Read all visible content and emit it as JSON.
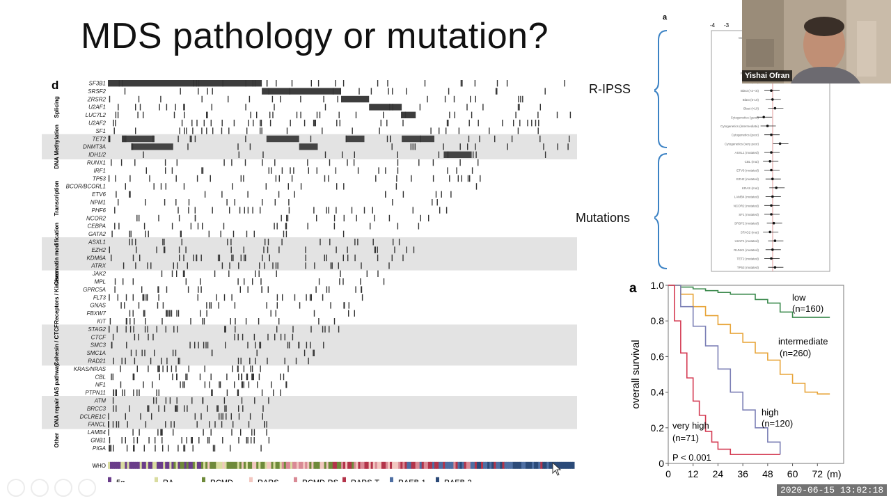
{
  "slide": {
    "title": "MDS pathology or mutation?",
    "ripss_label": "R-IPSS",
    "mutations_label": "Mutations"
  },
  "oncoprint": {
    "panel_letter": "d",
    "groups": [
      {
        "name": "Splicing",
        "shaded": false,
        "genes": [
          "SF3B1",
          "SRSF2",
          "ZRSR2",
          "U2AF1",
          "LUC7L2",
          "U2AF2",
          "SF1"
        ]
      },
      {
        "name": "DNA Methylation",
        "shaded": true,
        "genes": [
          "TET2",
          "DNMT3A",
          "IDH1/2"
        ]
      },
      {
        "name": "Transcription",
        "shaded": false,
        "genes": [
          "RUNX1",
          "IRF1",
          "TP53",
          "BCOR/BCORL1",
          "ETV6",
          "NPM1",
          "PHF6",
          "NCOR2",
          "CEBPA",
          "GATA2"
        ]
      },
      {
        "name": "Chromatin modification",
        "shaded": true,
        "genes": [
          "ASXL1",
          "EZH2",
          "KDM6A",
          "ATRX"
        ]
      },
      {
        "name": "Receptors / Kinases",
        "shaded": false,
        "genes": [
          "JAK2",
          "MPL",
          "GPRC5A",
          "FLT3",
          "GNAS",
          "FBXW7",
          "KIT"
        ]
      },
      {
        "name": "Cohesin / CTCF",
        "shaded": true,
        "genes": [
          "STAG2",
          "CTCF",
          "SMC3",
          "SMC1A",
          "RAD21"
        ]
      },
      {
        "name": "RAS pathway",
        "shaded": false,
        "genes": [
          "KRAS/NRAS",
          "CBL",
          "NF1",
          "PTPN11"
        ]
      },
      {
        "name": "DNA repair",
        "shaded": true,
        "genes": [
          "ATM",
          "BRCC3",
          "DCLRE1C",
          "FANCL"
        ]
      },
      {
        "name": "Other",
        "shaded": false,
        "genes": [
          "LAMB4",
          "GNB1",
          "PIGA"
        ]
      }
    ],
    "who_label": "WHO",
    "who_legend": [
      {
        "label": "5q-",
        "color": "#6a3d8a"
      },
      {
        "label": "RA",
        "color": "#d9dca0"
      },
      {
        "label": "RCMD",
        "color": "#6e8a3a"
      },
      {
        "label": "RARS",
        "color": "#f2c7c0"
      },
      {
        "label": "RCMD-RS",
        "color": "#d98a95"
      },
      {
        "label": "RARS-T",
        "color": "#b3344a"
      },
      {
        "label": "RAEB-1",
        "color": "#4e6fa3"
      },
      {
        "label": "RAEB-2",
        "color": "#2b4a78"
      }
    ]
  },
  "forest": {
    "panel_letter": "a",
    "ticks": [
      "-4",
      "-3"
    ],
    "rows": [
      "Gender (Male)",
      "Age",
      "Hb (8-<10)",
      "Hb (<8)",
      "Plt (50-<100)",
      "Plt (<50)",
      "Blast (>2-<5)",
      "Blast (5-10)",
      "Blast (>10)",
      "Cytogenetics (good)",
      "Cytogenetics (intermediate)",
      "Cytogenetics (poor)",
      "Cytogenetics (very poor)",
      "ASXL1 (mutated)",
      "CBL (mut)",
      "ETV6 (mutated)",
      "EZH2 (mutated)",
      "KRAS (mut)",
      "LAMB4 (mutated)",
      "NCOR2 (mutated)",
      "SF1 (mutated)",
      "SRSF2 (mutated)",
      "STAG2 (mut)",
      "U2AF1 (mutated)",
      "RUNX1 (mutated)",
      "TET2 (mutated)",
      "TP53 (mutated)"
    ]
  },
  "km": {
    "panel_letter": "a",
    "ylabel": "overall survival",
    "xunit": "(m)",
    "yticks": [
      "1.0",
      "0.8",
      "0.6",
      "0.4",
      "0.2",
      "0"
    ],
    "xticks": [
      "0",
      "12",
      "24",
      "36",
      "48",
      "60",
      "72"
    ],
    "pvalue": "P < 0.001",
    "curve_labels": [
      {
        "line1": "low",
        "line2": "(n=160)"
      },
      {
        "line1": "intermediate",
        "line2": "(n=260)"
      },
      {
        "line1": "high",
        "line2": "(n=120)"
      },
      {
        "line1": "very high",
        "line2": "(n=71)"
      }
    ],
    "colors": {
      "low": "#3c8a4e",
      "intermediate": "#e8a53a",
      "high": "#7b7fb5",
      "very_high": "#d43a52"
    }
  },
  "chart_data": {
    "type": "line",
    "title": "",
    "xlabel": "(m)",
    "ylabel": "overall survival",
    "xlim": [
      0,
      84
    ],
    "ylim": [
      0,
      1.0
    ],
    "series": [
      {
        "name": "low (n=160)",
        "x": [
          0,
          6,
          12,
          18,
          24,
          30,
          36,
          42,
          48,
          54,
          60,
          66,
          72,
          78
        ],
        "y": [
          1.0,
          0.99,
          0.98,
          0.97,
          0.96,
          0.95,
          0.95,
          0.92,
          0.9,
          0.85,
          0.82,
          0.82,
          0.82,
          0.82
        ]
      },
      {
        "name": "intermediate (n=260)",
        "x": [
          0,
          6,
          12,
          18,
          24,
          30,
          36,
          42,
          48,
          54,
          60,
          66,
          72,
          78
        ],
        "y": [
          1.0,
          0.95,
          0.88,
          0.83,
          0.78,
          0.73,
          0.68,
          0.62,
          0.58,
          0.5,
          0.45,
          0.4,
          0.39,
          0.39
        ]
      },
      {
        "name": "high (n=120)",
        "x": [
          0,
          6,
          12,
          18,
          24,
          30,
          36,
          42,
          48,
          54
        ],
        "y": [
          1.0,
          0.88,
          0.77,
          0.66,
          0.53,
          0.4,
          0.3,
          0.2,
          0.12,
          0.05
        ]
      },
      {
        "name": "very high (n=71)",
        "x": [
          0,
          3,
          6,
          9,
          12,
          15,
          18,
          21,
          24,
          30,
          36,
          42,
          48,
          54
        ],
        "y": [
          1.0,
          0.8,
          0.62,
          0.48,
          0.35,
          0.27,
          0.18,
          0.12,
          0.08,
          0.05,
          0.05,
          0.05,
          0.05,
          0.05
        ]
      }
    ]
  },
  "video": {
    "name": "Yishai Ofran"
  },
  "meta": {
    "timestamp": "2020-06-15 13:02:18"
  }
}
